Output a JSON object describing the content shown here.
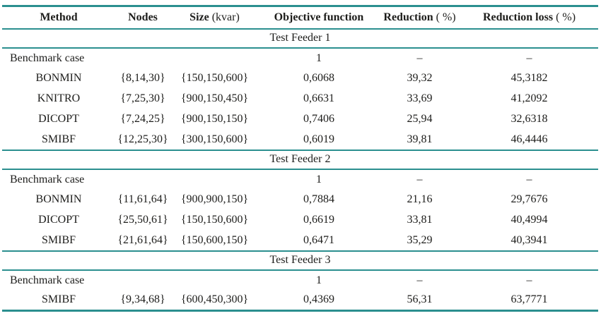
{
  "table": {
    "accent_color": "#2b8f8f",
    "text_color": "#1d1d1b",
    "columns": [
      {
        "label": "Method",
        "unit": ""
      },
      {
        "label": "Nodes",
        "unit": ""
      },
      {
        "label": "Size",
        "unit": "(kvar)"
      },
      {
        "label": "Objective function",
        "unit": ""
      },
      {
        "label": "Reduction",
        "unit": "( %)"
      },
      {
        "label": "Reduction loss",
        "unit": "( %)"
      }
    ],
    "sections": [
      {
        "title": "Test Feeder 1",
        "rows": [
          {
            "kind": "benchmark",
            "cells": [
              "Benchmark case",
              "",
              "",
              "1",
              "–",
              "–"
            ]
          },
          {
            "kind": "data",
            "cells": [
              "BONMIN",
              "{8,14,30}",
              "{150,150,600}",
              "0,6068",
              "39,32",
              "45,3182"
            ]
          },
          {
            "kind": "data",
            "cells": [
              "KNITRO",
              "{7,25,30}",
              "{900,150,450}",
              "0,6631",
              "33,69",
              "41,2092"
            ]
          },
          {
            "kind": "data",
            "cells": [
              "DICOPT",
              "{7,24,25}",
              "{900,150,150}",
              "0,7406",
              "25,94",
              "32,6318"
            ]
          },
          {
            "kind": "data",
            "cells": [
              "SMIBF",
              "{12,25,30}",
              "{300,150,600}",
              "0,6019",
              "39,81",
              "46,4446"
            ]
          }
        ]
      },
      {
        "title": "Test Feeder 2",
        "rows": [
          {
            "kind": "benchmark",
            "cells": [
              "Benchmark case",
              "",
              "",
              "1",
              "–",
              "–"
            ]
          },
          {
            "kind": "data",
            "cells": [
              "BONMIN",
              "{11,61,64}",
              "{900,900,150}",
              "0,7884",
              "21,16",
              "29,7676"
            ]
          },
          {
            "kind": "data",
            "cells": [
              "DICOPT",
              "{25,50,61}",
              "{150,150,600}",
              "0,6619",
              "33,81",
              "40,4994"
            ]
          },
          {
            "kind": "data",
            "cells": [
              "SMIBF",
              "{21,61,64}",
              "{150,600,150}",
              "0,6471",
              "35,29",
              "40,3941"
            ]
          }
        ]
      },
      {
        "title": "Test Feeder 3",
        "rows": [
          {
            "kind": "benchmark",
            "cells": [
              "Benchmark case",
              "",
              "",
              "1",
              "–",
              "–"
            ]
          },
          {
            "kind": "data",
            "cells": [
              "SMIBF",
              "{9,34,68}",
              "{600,450,300}",
              "0,4369",
              "56,31",
              "63,7771"
            ]
          }
        ]
      }
    ]
  }
}
